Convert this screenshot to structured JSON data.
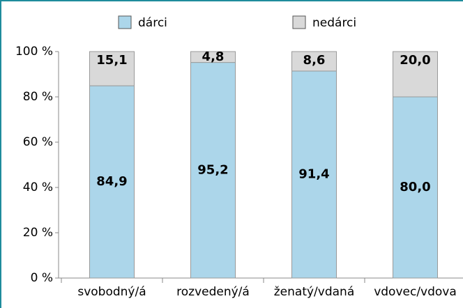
{
  "chart_data": {
    "type": "stacked_bar",
    "categories": [
      "svobodný/á",
      "rozvedený/á",
      "ženatý/vdaná",
      "vdovec/vdova"
    ],
    "series": [
      {
        "name": "dárci",
        "color": "#acd6ea",
        "values": [
          84.9,
          95.2,
          91.4,
          80.0
        ],
        "value_labels": [
          "84,9",
          "95,2",
          "91,4",
          "80,0"
        ]
      },
      {
        "name": "nedárci",
        "color": "#d9d9d9",
        "values": [
          15.1,
          4.8,
          8.6,
          20.0
        ],
        "value_labels": [
          "15,1",
          "4,8",
          "8,6",
          "20,0"
        ]
      }
    ],
    "ylim": [
      0,
      100
    ],
    "yticks": [
      {
        "value": 0,
        "label": "0 %"
      },
      {
        "value": 20,
        "label": "20 %"
      },
      {
        "value": 40,
        "label": "40 %"
      },
      {
        "value": 60,
        "label": "60 %"
      },
      {
        "value": 80,
        "label": "80 %"
      },
      {
        "value": 100,
        "label": "100 %"
      }
    ],
    "legend": "top"
  }
}
